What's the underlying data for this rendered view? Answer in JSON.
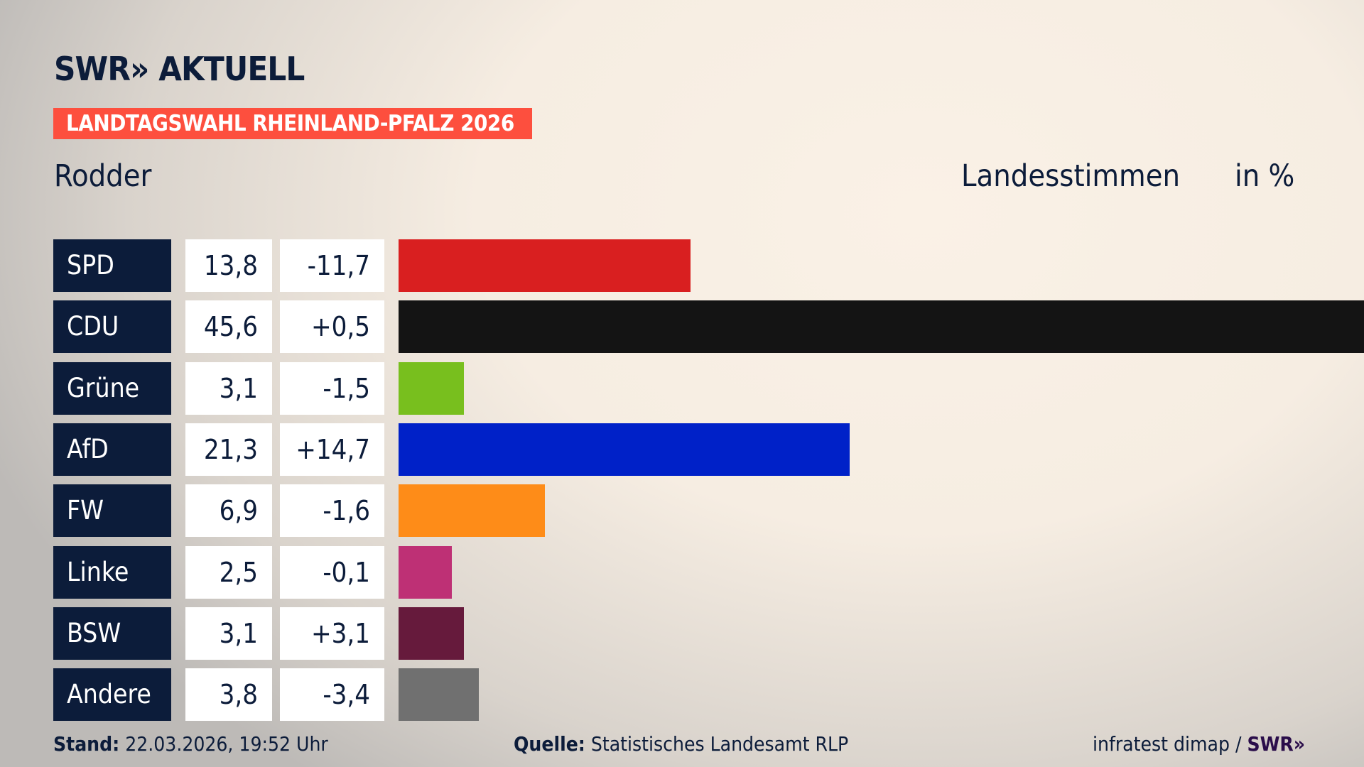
{
  "logo": "SWR» AKTUELL",
  "banner": "LANDTAGSWAHL RHEINLAND-PFALZ 2026",
  "region": "Rodder",
  "measure": "Landesstimmen",
  "unit": "in %",
  "chart_data": {
    "type": "bar",
    "orientation": "horizontal",
    "categories": [
      "SPD",
      "CDU",
      "Grüne",
      "AfD",
      "FW",
      "Linke",
      "BSW",
      "Andere"
    ],
    "values": [
      13.8,
      45.6,
      3.1,
      21.3,
      6.9,
      2.5,
      3.1,
      3.8
    ],
    "value_labels": [
      "13,8",
      "45,6",
      "3,1",
      "21,3",
      "6,9",
      "2,5",
      "3,1",
      "3,8"
    ],
    "change_labels": [
      "-11,7",
      "+0,5",
      "-1,5",
      "+14,7",
      "-1,6",
      "-0,1",
      "+3,1",
      "-3,4"
    ],
    "changes": [
      -11.7,
      0.5,
      -1.5,
      14.7,
      -1.6,
      -0.1,
      3.1,
      -3.4
    ],
    "colors": [
      "#d91f20",
      "#141414",
      "#78bf1e",
      "#0021c8",
      "#fe8c18",
      "#be3075",
      "#661a3c",
      "#707070"
    ],
    "xlim": [
      0,
      45.6
    ]
  },
  "footer": {
    "stand_label": "Stand:",
    "stand_value": "22.03.2026, 19:52 Uhr",
    "source_label": "Quelle:",
    "source_value": "Statistisches Landesamt RLP",
    "credit": "infratest dimap /",
    "credit_logo": "SWR»"
  }
}
